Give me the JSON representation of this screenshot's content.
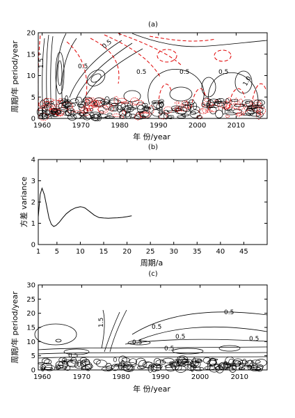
{
  "chart_data": [
    {
      "panel": "(a)",
      "type": "contour",
      "xlabel": "年 份/year",
      "ylabel": "周期/年 period/year",
      "xlim": [
        1959,
        2018
      ],
      "ylim": [
        0,
        20
      ],
      "xticks": [
        1960,
        1970,
        1980,
        1990,
        2000,
        2010
      ],
      "yticks": [
        0,
        5,
        10,
        15,
        20
      ],
      "contour_labels": [
        "1.5",
        "0.5",
        "0.5",
        "0.5",
        "0.5",
        "0.5",
        "1.0"
      ],
      "colors": {
        "positive": "#000000",
        "negative": "#e00000"
      }
    },
    {
      "panel": "(b)",
      "type": "line",
      "xlabel": "周期/a",
      "ylabel": "方差 variance",
      "xlim": [
        1,
        50
      ],
      "ylim": [
        0,
        4
      ],
      "xticks": [
        1,
        5,
        10,
        15,
        20,
        25,
        30,
        35,
        40,
        45
      ],
      "yticks": [
        0,
        1,
        2,
        3,
        4
      ],
      "series": [
        {
          "x": [
            1,
            1.4,
            1.8,
            2.3,
            2.8,
            3.3,
            3.8,
            4.3,
            4.8,
            5.5,
            6.2,
            7,
            8,
            9,
            10,
            10.5,
            11,
            12,
            13,
            14,
            15,
            16,
            17,
            18,
            19,
            20,
            21
          ],
          "y": [
            1.3,
            2.35,
            2.65,
            2.35,
            1.8,
            1.25,
            0.95,
            0.85,
            0.9,
            1.05,
            1.25,
            1.45,
            1.62,
            1.73,
            1.78,
            1.76,
            1.72,
            1.55,
            1.38,
            1.27,
            1.25,
            1.24,
            1.25,
            1.26,
            1.28,
            1.31,
            1.35
          ]
        }
      ]
    },
    {
      "panel": "(c)",
      "type": "contour",
      "xlabel": "年 份/year",
      "ylabel": "周期/年 period/year",
      "xlim": [
        1959,
        2017
      ],
      "ylim": [
        0,
        30
      ],
      "xticks": [
        1960,
        1970,
        1980,
        1990,
        2000,
        2010
      ],
      "yticks": [
        0,
        5,
        10,
        15,
        20,
        25,
        30
      ],
      "contour_labels": [
        "0.5",
        "1.5",
        "0.5",
        "0.5",
        "0.5",
        "0.5",
        "0.5",
        "0.5"
      ],
      "colors": {
        "line": "#000000"
      }
    }
  ]
}
